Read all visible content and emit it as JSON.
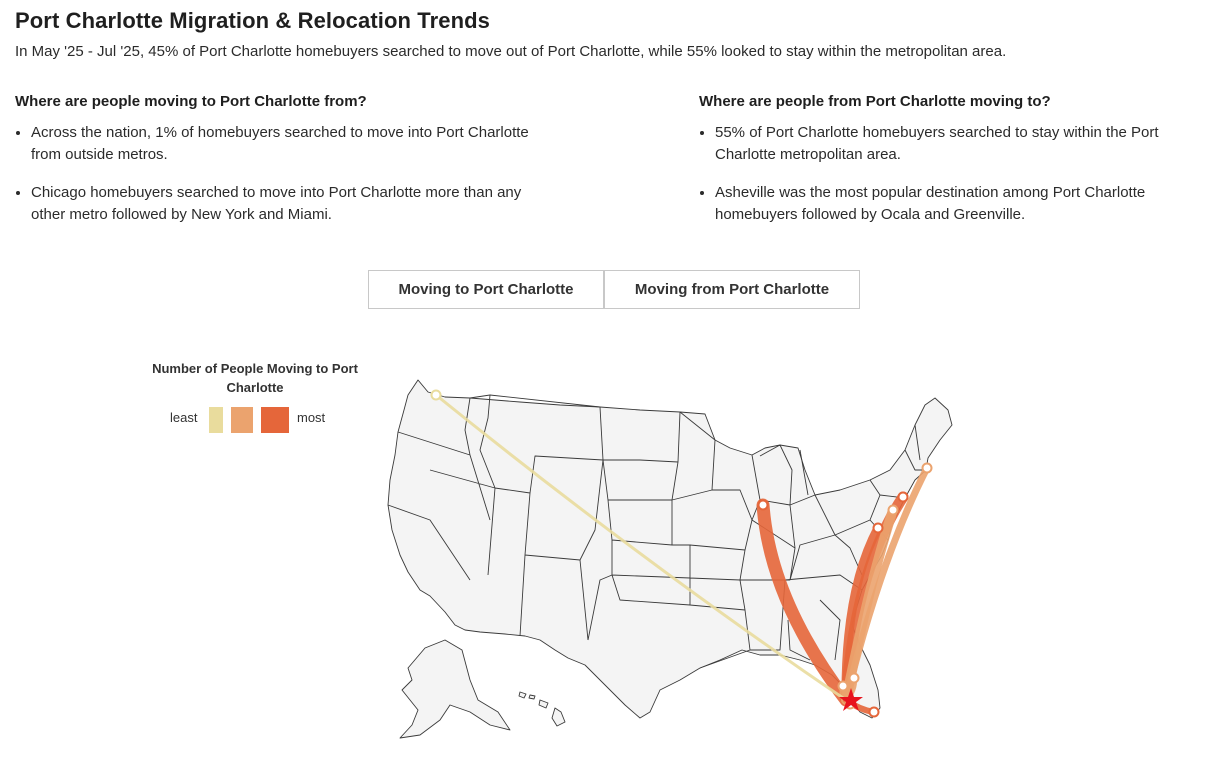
{
  "header": {
    "title": "Port Charlotte Migration & Relocation Trends",
    "subtitle": "In May '25 - Jul '25, 45% of Port Charlotte homebuyers searched to move out of Port Charlotte, while 55% looked to stay within the metropolitan area."
  },
  "inbound": {
    "heading": "Where are people moving to Port Charlotte from?",
    "bullets": [
      "Across the nation, 1% of homebuyers searched to move into Port Charlotte from outside metros.",
      "Chicago homebuyers searched to move into Port Charlotte more than any other metro followed by New York and Miami."
    ]
  },
  "outbound": {
    "heading": "Where are people from Port Charlotte moving to?",
    "bullets": [
      "55% of Port Charlotte homebuyers searched to stay within the Port Charlotte metropolitan area.",
      "Asheville was the most popular destination among Port Charlotte homebuyers followed by Ocala and Greenville."
    ]
  },
  "toggle": {
    "to_label": "Moving to Port Charlotte",
    "from_label": "Moving from Port Charlotte",
    "selected": "Moving to Port Charlotte"
  },
  "legend": {
    "title": "Number of People Moving to Port Charlotte",
    "least_label": "least",
    "most_label": "most",
    "colors": [
      "#e9dc9d",
      "#eba36e",
      "#e5663a"
    ]
  },
  "map": {
    "destination_marker_color": "#e8121d",
    "destination_icon": "star-icon",
    "flows": [
      {
        "level": 3
      },
      {
        "level": 3
      },
      {
        "level": 3
      },
      {
        "level": 2
      },
      {
        "level": 2
      },
      {
        "level": 2
      },
      {
        "level": 2
      },
      {
        "level": 1
      },
      {
        "level": 3
      },
      {
        "level": 2
      }
    ]
  }
}
